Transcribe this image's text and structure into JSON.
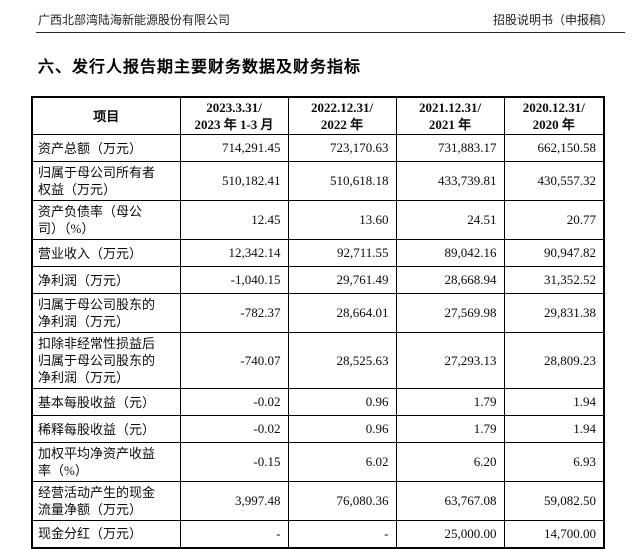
{
  "header": {
    "company": "广西北部湾陆海新能源股份有限公司",
    "doc_type": "招股说明书（申报稿）"
  },
  "section": {
    "title": "六、发行人报告期主要财务数据及财务指标"
  },
  "table": {
    "columns": [
      "项目",
      "2023.3.31/\n2023 年 1-3 月",
      "2022.12.31/\n2022 年",
      "2021.12.31/\n2021 年",
      "2020.12.31/\n2020 年"
    ],
    "rows": [
      {
        "label": "资产总额（万元）",
        "values": [
          "714,291.45",
          "723,170.63",
          "731,883.17",
          "662,150.58"
        ]
      },
      {
        "label": "归属于母公司所有者\n权益（万元）",
        "values": [
          "510,182.41",
          "510,618.18",
          "433,739.81",
          "430,557.32"
        ]
      },
      {
        "label": "资产负债率（母公\n司）（%）",
        "values": [
          "12.45",
          "13.60",
          "24.51",
          "20.77"
        ]
      },
      {
        "label": "营业收入（万元）",
        "values": [
          "12,342.14",
          "92,711.55",
          "89,042.16",
          "90,947.82"
        ]
      },
      {
        "label": "净利润（万元）",
        "values": [
          "-1,040.15",
          "29,761.49",
          "28,668.94",
          "31,352.52"
        ]
      },
      {
        "label": "归属于母公司股东的\n净利润（万元）",
        "values": [
          "-782.37",
          "28,664.01",
          "27,569.98",
          "29,831.38"
        ]
      },
      {
        "label": "扣除非经常性损益后\n归属于母公司股东的\n净利润（万元）",
        "values": [
          "-740.07",
          "28,525.63",
          "27,293.13",
          "28,809.23"
        ]
      },
      {
        "label": "基本每股收益（元）",
        "values": [
          "-0.02",
          "0.96",
          "1.79",
          "1.94"
        ]
      },
      {
        "label": "稀释每股收益（元）",
        "values": [
          "-0.02",
          "0.96",
          "1.79",
          "1.94"
        ]
      },
      {
        "label": "加权平均净资产收益\n率（%）",
        "values": [
          "-0.15",
          "6.02",
          "6.20",
          "6.93"
        ]
      },
      {
        "label": "经营活动产生的现金\n流量净额（万元）",
        "values": [
          "3,997.48",
          "76,080.36",
          "63,767.08",
          "59,082.50"
        ]
      },
      {
        "label": "现金分红（万元）",
        "values": [
          "-",
          "-",
          "25,000.00",
          "14,700.00"
        ]
      }
    ]
  }
}
